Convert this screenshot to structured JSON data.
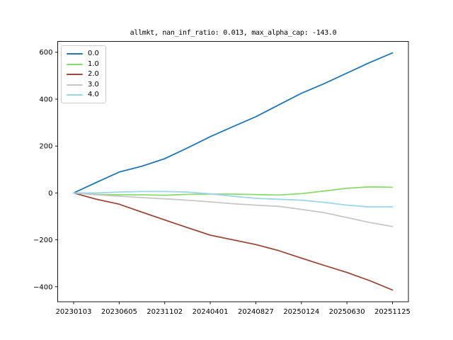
{
  "chart_data": {
    "type": "line",
    "title": "allmkt, nan_inf_ratio: 0.013, max_alpha_cap: -143.0",
    "x_tick_labels": [
      "20230103",
      "20230605",
      "20231102",
      "20240401",
      "20240827",
      "20250124",
      "20250630",
      "20251125"
    ],
    "x_tick_index": [
      0,
      2,
      4,
      6,
      8,
      10,
      12,
      14
    ],
    "x_index": [
      0,
      1,
      2,
      3,
      4,
      5,
      6,
      7,
      8,
      9,
      10,
      11,
      12,
      13,
      14
    ],
    "y_ticks": [
      600,
      400,
      200,
      0,
      -200,
      -400
    ],
    "y_tick_labels": [
      "600",
      "400",
      "200",
      "0",
      "−200",
      "−400"
    ],
    "ylim": [
      -464,
      646
    ],
    "xlim_index": [
      -0.7,
      14.7
    ],
    "grid": false,
    "legend_position": "upper left",
    "axis_color": "#000000",
    "background_color": "#ffffff",
    "series": [
      {
        "name": "0.0",
        "color": "#1f77b4",
        "values": [
          0,
          45,
          89,
          114,
          146,
          192,
          240,
          283,
          325,
          375,
          425,
          466,
          511,
          556,
          597
        ]
      },
      {
        "name": "1.0",
        "color": "#8ed973",
        "values": [
          0,
          -6,
          -8,
          -8,
          -10,
          -6,
          -5,
          -5,
          -7,
          -9,
          -3,
          8,
          20,
          26,
          24
        ]
      },
      {
        "name": "2.0",
        "color": "#9a4a3a",
        "values": [
          0,
          -27,
          -48,
          -82,
          -115,
          -148,
          -180,
          -200,
          -220,
          -246,
          -278,
          -309,
          -339,
          -374,
          -414
        ]
      },
      {
        "name": "3.0",
        "color": "#c7c7c7",
        "values": [
          0,
          -8,
          -14,
          -20,
          -25,
          -31,
          -38,
          -46,
          -52,
          -57,
          -70,
          -84,
          -105,
          -126,
          -143
        ]
      },
      {
        "name": "4.0",
        "color": "#9bd5e8",
        "values": [
          0,
          0,
          4,
          6,
          6,
          4,
          -4,
          -14,
          -23,
          -27,
          -31,
          -40,
          -52,
          -60,
          -59
        ]
      }
    ]
  }
}
